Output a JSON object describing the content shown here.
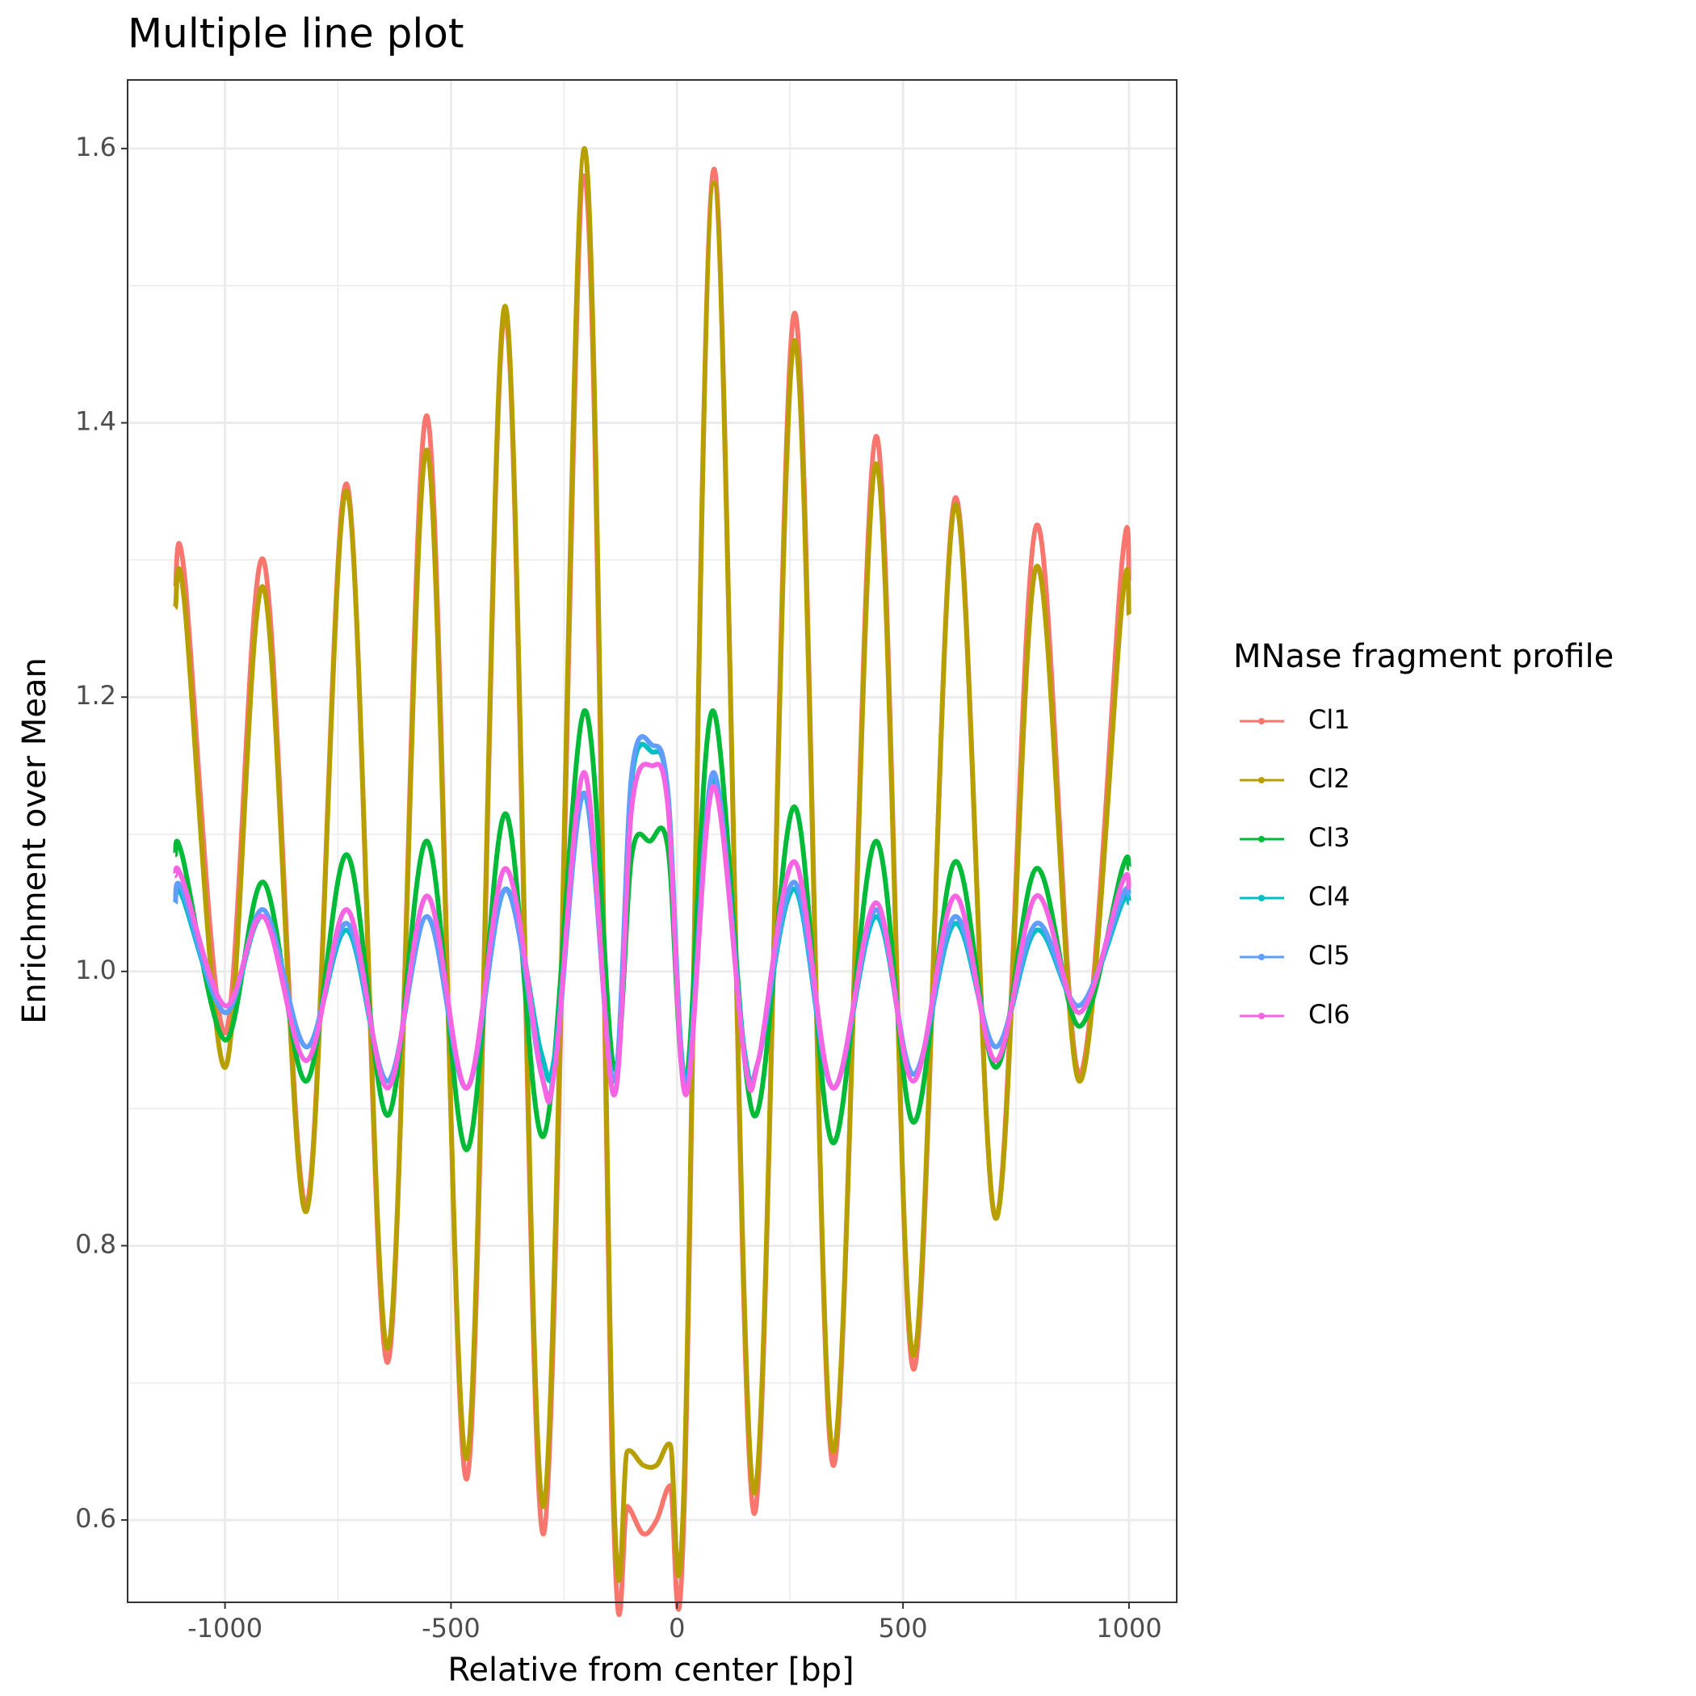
{
  "chart_data": {
    "type": "line",
    "title": "Multiple line plot",
    "x_label": "Relative from center [bp]",
    "y_label": "Enrichment over Mean",
    "legend_title": "MNase fragment profile",
    "legend_position": "right",
    "grid": true,
    "xlim": [
      -1215.5,
      1105.5
    ],
    "ylim": [
      0.54,
      1.65
    ],
    "xticks": [
      -1000,
      -500,
      0,
      500,
      1000
    ],
    "yticks": [
      0.6,
      0.8,
      {
        "value": 1,
        "label": "1.0"
      },
      1.2,
      1.4,
      1.6
    ],
    "series": [
      {
        "name": "Cl1",
        "color": "#f8766d",
        "x": [
          -1110,
          -1090,
          -1000,
          -915,
          -820,
          -730,
          -640,
          -553,
          -465,
          -380,
          -295,
          -205,
          -140,
          -110,
          -75,
          -45,
          -15,
          15,
          82,
          170,
          260,
          345,
          440,
          523,
          615,
          705,
          795,
          890,
          985,
          1000
        ],
        "values": [
          1.28,
          1.29,
          0.955,
          1.3,
          0.83,
          1.355,
          0.715,
          1.405,
          0.63,
          1.48,
          0.59,
          1.58,
          0.6,
          0.61,
          0.59,
          0.6,
          0.625,
          0.6,
          1.585,
          0.605,
          1.48,
          0.64,
          1.39,
          0.71,
          1.345,
          0.82,
          1.325,
          0.925,
          1.3,
          1.285
        ]
      },
      {
        "name": "Cl2",
        "color": "#b79f00",
        "x": [
          -1110,
          -1090,
          -1000,
          -915,
          -820,
          -730,
          -640,
          -553,
          -465,
          -380,
          -295,
          -205,
          -140,
          -110,
          -75,
          -45,
          -15,
          15,
          82,
          170,
          260,
          345,
          440,
          523,
          615,
          705,
          795,
          890,
          985,
          1000
        ],
        "values": [
          1.265,
          1.27,
          0.93,
          1.28,
          0.825,
          1.35,
          0.725,
          1.38,
          0.645,
          1.485,
          0.61,
          1.6,
          0.62,
          0.65,
          0.64,
          0.64,
          0.655,
          0.62,
          1.575,
          0.62,
          1.46,
          0.65,
          1.37,
          0.72,
          1.34,
          0.82,
          1.295,
          0.92,
          1.27,
          1.26
        ]
      },
      {
        "name": "Cl3",
        "color": "#00ba38",
        "x": [
          -1110,
          -1095,
          -1000,
          -915,
          -820,
          -730,
          -640,
          -553,
          -465,
          -380,
          -295,
          -205,
          -140,
          -100,
          -60,
          -20,
          20,
          80,
          170,
          260,
          345,
          440,
          523,
          615,
          705,
          795,
          890,
          985,
          1000
        ],
        "values": [
          1.085,
          1.085,
          0.95,
          1.065,
          0.92,
          1.085,
          0.895,
          1.095,
          0.87,
          1.115,
          0.88,
          1.19,
          0.93,
          1.085,
          1.095,
          1.09,
          0.92,
          1.19,
          0.895,
          1.12,
          0.875,
          1.095,
          0.89,
          1.08,
          0.93,
          1.075,
          0.96,
          1.075,
          1.075
        ]
      },
      {
        "name": "Cl4",
        "color": "#00bfc4",
        "x": [
          -1110,
          -1095,
          -1000,
          -915,
          -820,
          -730,
          -640,
          -553,
          -465,
          -380,
          -300,
          -270,
          -205,
          -140,
          -100,
          -55,
          -20,
          20,
          80,
          150,
          180,
          260,
          345,
          440,
          523,
          615,
          705,
          795,
          890,
          985,
          1000
        ],
        "values": [
          1.05,
          1.055,
          0.97,
          1.04,
          0.945,
          1.03,
          0.92,
          1.04,
          0.915,
          1.06,
          0.94,
          0.94,
          1.13,
          0.92,
          1.14,
          1.16,
          1.13,
          0.92,
          1.14,
          0.94,
          0.935,
          1.06,
          0.915,
          1.04,
          0.925,
          1.035,
          0.945,
          1.03,
          0.975,
          1.05,
          1.05
        ]
      },
      {
        "name": "Cl5",
        "color": "#619cff",
        "x": [
          -1110,
          -1095,
          -1000,
          -915,
          -820,
          -730,
          -640,
          -553,
          -465,
          -380,
          -300,
          -270,
          -205,
          -140,
          -100,
          -55,
          -20,
          20,
          80,
          150,
          180,
          260,
          345,
          440,
          523,
          615,
          705,
          795,
          890,
          985,
          1000
        ],
        "values": [
          1.05,
          1.06,
          0.97,
          1.045,
          0.945,
          1.035,
          0.92,
          1.04,
          0.915,
          1.06,
          0.925,
          0.93,
          1.13,
          0.92,
          1.145,
          1.165,
          1.13,
          0.915,
          1.145,
          0.935,
          0.935,
          1.065,
          0.915,
          1.045,
          0.925,
          1.04,
          0.945,
          1.035,
          0.975,
          1.055,
          1.055
        ]
      },
      {
        "name": "Cl6",
        "color": "#f564e3",
        "x": [
          -1110,
          -1095,
          -1000,
          -915,
          -820,
          -730,
          -640,
          -553,
          -465,
          -380,
          -300,
          -270,
          -205,
          -140,
          -100,
          -55,
          -20,
          20,
          80,
          150,
          180,
          260,
          345,
          440,
          523,
          615,
          705,
          795,
          890,
          985,
          1000
        ],
        "values": [
          1.07,
          1.068,
          0.975,
          1.04,
          0.935,
          1.045,
          0.915,
          1.055,
          0.915,
          1.075,
          0.925,
          0.93,
          1.145,
          0.91,
          1.12,
          1.15,
          1.12,
          0.91,
          1.135,
          0.935,
          0.935,
          1.08,
          0.915,
          1.05,
          0.92,
          1.055,
          0.935,
          1.055,
          0.97,
          1.065,
          1.06
        ]
      }
    ]
  }
}
